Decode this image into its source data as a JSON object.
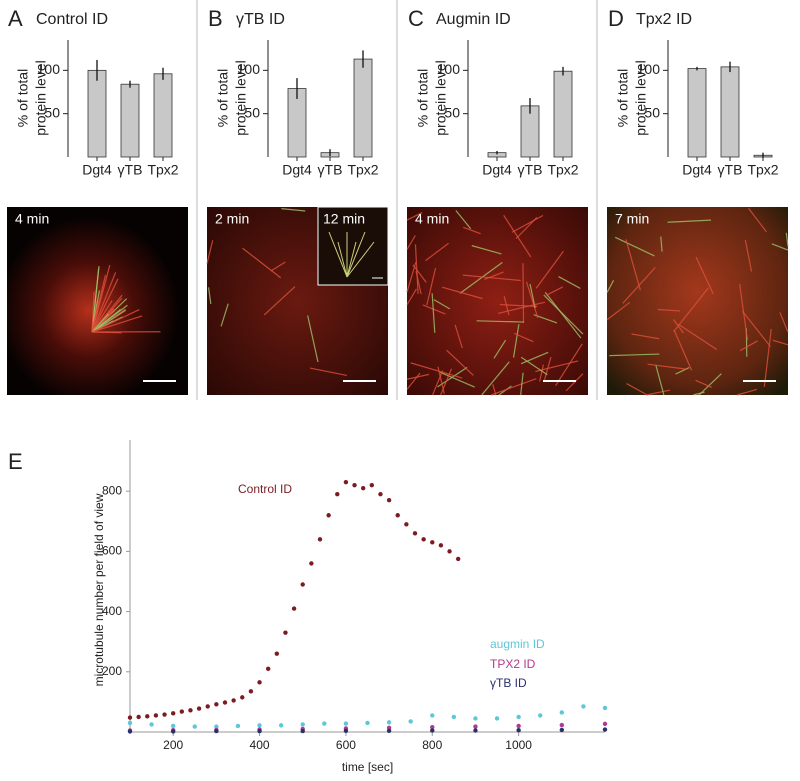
{
  "chart_data": [
    {
      "type": "bar",
      "panel": "A",
      "title": "Control ID",
      "ylabel": [
        "% of total",
        "protein level"
      ],
      "categories": [
        "Dgt4",
        "γTB",
        "Tpx2"
      ],
      "values": [
        100,
        84,
        96
      ],
      "errors": [
        12,
        4,
        7
      ],
      "color": "#c8c8c8",
      "ylim": [
        0,
        135
      ],
      "yticks": [
        50,
        100
      ],
      "image_labels": [
        "4 min"
      ]
    },
    {
      "type": "bar",
      "panel": "B",
      "title": "γTB ID",
      "ylabel": [
        "% of total",
        "protein level"
      ],
      "categories": [
        "Dgt4",
        "γTB",
        "Tpx2"
      ],
      "values": [
        79,
        5,
        113
      ],
      "errors": [
        12,
        4,
        10
      ],
      "color": "#c8c8c8",
      "ylim": [
        0,
        135
      ],
      "yticks": [
        50,
        100
      ],
      "image_labels": [
        "2 min",
        "12 min"
      ]
    },
    {
      "type": "bar",
      "panel": "C",
      "title": "Augmin ID",
      "ylabel": [
        "% of total",
        "protein level"
      ],
      "categories": [
        "Dgt4",
        "γTB",
        "Tpx2"
      ],
      "values": [
        5,
        59,
        99
      ],
      "errors": [
        2,
        9,
        5
      ],
      "color": "#c8c8c8",
      "ylim": [
        0,
        135
      ],
      "yticks": [
        50,
        100
      ],
      "image_labels": [
        "4 min"
      ]
    },
    {
      "type": "bar",
      "panel": "D",
      "title": "Tpx2 ID",
      "ylabel": [
        "% of total",
        "protein level"
      ],
      "categories": [
        "Dgt4",
        "γTB",
        "Tpx2"
      ],
      "values": [
        102,
        104,
        2
      ],
      "errors": [
        2,
        6,
        3
      ],
      "color": "#c8c8c8",
      "ylim": [
        0,
        135
      ],
      "yticks": [
        50,
        100
      ],
      "image_labels": [
        "7 min"
      ]
    },
    {
      "type": "scatter",
      "panel": "E",
      "xlabel": "time [sec]",
      "ylabel": "microtubule number per field of view",
      "xlim": [
        100,
        1200
      ],
      "ylim": [
        0,
        970
      ],
      "xticks": [
        200,
        400,
        600,
        800,
        1000
      ],
      "yticks": [
        200,
        400,
        600,
        800
      ],
      "series": [
        {
          "name": "Control ID",
          "color": "#7a1c22",
          "x": [
            100,
            120,
            140,
            160,
            180,
            200,
            220,
            240,
            260,
            280,
            300,
            320,
            340,
            360,
            380,
            400,
            420,
            440,
            460,
            480,
            500,
            520,
            540,
            560,
            580,
            600,
            620,
            640,
            660,
            680,
            700,
            720,
            740,
            760,
            780,
            800,
            820,
            840,
            860
          ],
          "values": [
            48,
            50,
            52,
            55,
            58,
            62,
            68,
            72,
            78,
            85,
            92,
            98,
            105,
            115,
            135,
            165,
            210,
            260,
            330,
            410,
            490,
            560,
            640,
            720,
            790,
            830,
            820,
            810,
            820,
            790,
            770,
            720,
            690,
            660,
            640,
            630,
            620,
            600,
            575
          ]
        },
        {
          "name": "augmin ID",
          "color": "#5bc8d8",
          "x": [
            100,
            150,
            200,
            250,
            300,
            350,
            400,
            450,
            500,
            550,
            600,
            650,
            700,
            750,
            800,
            850,
            900,
            950,
            1000,
            1050,
            1100,
            1150,
            1200
          ],
          "values": [
            30,
            25,
            20,
            18,
            18,
            20,
            22,
            22,
            25,
            28,
            28,
            30,
            32,
            35,
            55,
            50,
            45,
            45,
            50,
            55,
            65,
            85,
            80
          ]
        },
        {
          "name": "TPX2 ID",
          "color": "#b03a8e",
          "x": [
            100,
            200,
            300,
            400,
            500,
            600,
            700,
            800,
            900,
            1000,
            1100,
            1200
          ],
          "values": [
            5,
            6,
            7,
            8,
            10,
            12,
            14,
            16,
            18,
            20,
            23,
            27
          ]
        },
        {
          "name": "γTB ID",
          "color": "#2b2f6e",
          "x": [
            100,
            200,
            300,
            400,
            500,
            600,
            700,
            800,
            900,
            1000,
            1100,
            1200
          ],
          "values": [
            2,
            2,
            3,
            3,
            3,
            4,
            4,
            5,
            5,
            6,
            7,
            8
          ]
        }
      ]
    }
  ]
}
